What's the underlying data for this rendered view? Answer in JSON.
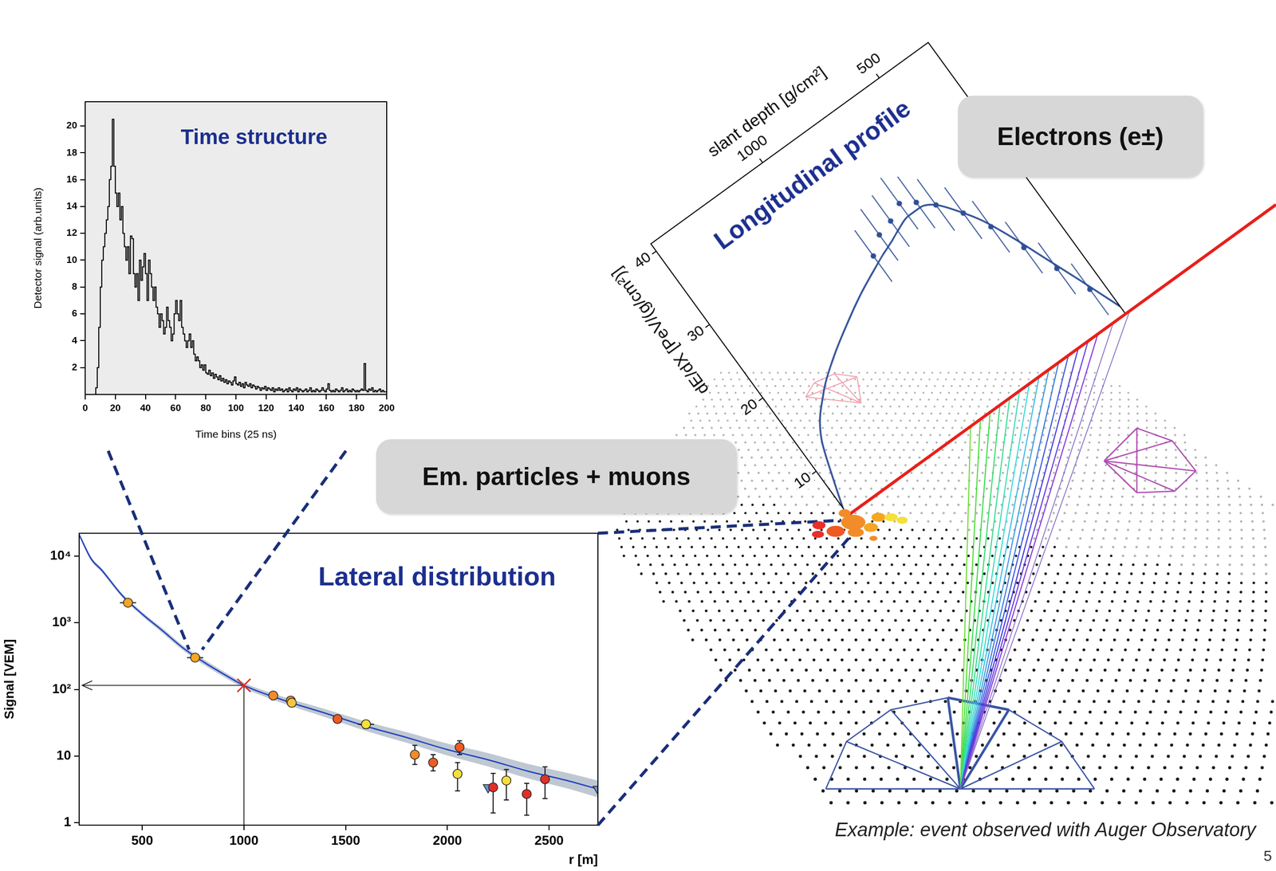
{
  "chart_data": [
    {
      "type": "histogram",
      "title": "Time structure",
      "x_label": "Time bins (25 ns)",
      "y_label": "Detector signal (arb.units)",
      "color": "#000000",
      "bins": [
        0,
        1,
        2,
        3,
        4,
        5,
        6,
        7,
        8,
        9,
        10,
        11,
        12,
        13,
        14,
        15,
        16,
        17,
        18,
        19,
        20,
        21,
        22,
        23,
        24,
        25,
        26,
        27,
        28,
        29,
        30,
        31,
        32,
        33,
        34,
        35,
        36,
        37,
        38,
        39,
        40,
        41,
        42,
        43,
        44,
        45,
        46,
        47,
        48,
        49,
        50,
        51,
        52,
        53,
        54,
        55,
        56,
        57,
        58,
        59,
        60,
        61,
        62,
        63,
        64,
        65,
        66,
        67,
        68,
        69,
        70,
        71,
        72,
        73,
        74,
        75,
        76,
        77,
        78,
        79,
        80,
        81,
        82,
        83,
        84,
        85,
        86,
        87,
        88,
        89,
        90,
        91,
        92,
        93,
        94,
        95,
        96,
        97,
        98,
        99,
        100,
        101,
        102,
        103,
        104,
        105,
        106,
        107,
        108,
        109,
        110,
        111,
        112,
        113,
        114,
        115,
        116,
        117,
        118,
        119,
        120,
        121,
        122,
        123,
        124,
        125,
        126,
        127,
        128,
        129,
        130,
        131,
        132,
        133,
        134,
        135,
        136,
        137,
        138,
        139,
        140,
        141,
        142,
        143,
        144,
        145,
        146,
        147,
        148,
        149,
        150,
        151,
        152,
        153,
        154,
        155,
        156,
        157,
        158,
        159,
        160,
        161,
        162,
        163,
        164,
        165,
        166,
        167,
        168,
        169,
        170,
        171,
        172,
        173,
        174,
        175,
        176,
        177,
        178,
        179,
        180,
        181,
        182,
        183,
        184,
        185,
        186,
        187,
        188,
        189,
        190,
        191,
        192,
        193,
        194,
        195,
        196,
        197,
        198,
        199,
        200
      ],
      "counts": [
        0,
        0,
        0,
        0,
        0,
        0,
        0,
        0,
        0.5,
        2,
        5,
        8,
        10,
        11,
        12,
        13,
        14,
        16,
        17,
        20.5,
        17,
        15,
        14,
        15,
        13,
        14,
        12,
        11,
        10,
        11,
        9,
        11.8,
        11.6,
        9,
        8,
        9,
        7,
        10,
        8.5,
        9.5,
        10.5,
        9,
        7,
        10,
        9,
        8,
        7,
        8,
        6.5,
        6,
        5,
        6,
        5.5,
        4.5,
        5,
        6.5,
        5.5,
        5,
        4,
        4.5,
        6,
        7,
        6,
        5.5,
        7,
        5,
        4.5,
        4,
        3.5,
        4,
        4.5,
        3.5,
        4,
        3,
        2.5,
        2.8,
        2.5,
        2,
        2.2,
        1.8,
        2.2,
        1.6,
        1.5,
        1.8,
        1.4,
        1.6,
        1.2,
        1.5,
        1.3,
        1.1,
        1.4,
        1,
        1.2,
        0.9,
        1.1,
        0.8,
        1,
        0.9,
        0.7,
        1,
        1.3,
        0.8,
        0.7,
        0.9,
        0.6,
        0.8,
        0.5,
        0.9,
        0.7,
        0.6,
        0.8,
        0.5,
        0.7,
        0.6,
        0.4,
        0.6,
        0.5,
        0.3,
        0.5,
        0.4,
        0.6,
        0.3,
        0.5,
        0.4,
        0.3,
        0.5,
        0.2,
        0.4,
        0.3,
        0.5,
        0.3,
        0.4,
        0.2,
        0.3,
        0.4,
        0.2,
        0.5,
        0.3,
        0.2,
        0.4,
        0.3,
        0.5,
        0.2,
        0.4,
        0.3,
        0.2,
        0.3,
        0.4,
        0.2,
        0.3,
        0.5,
        0.2,
        0.3,
        0.2,
        0.4,
        0.3,
        0.2,
        0.3,
        0.5,
        0.3,
        0.2,
        0.4,
        0.8,
        0.3,
        0.2,
        0.3,
        0.2,
        0.4,
        0.3,
        0.2,
        0.3,
        0.5,
        0.2,
        0.3,
        0.4,
        0.2,
        0.3,
        0.2,
        0.4,
        0.3,
        0.2,
        0.3,
        0.2,
        0.3,
        0.4,
        0.3,
        2.3,
        0.3,
        0.2,
        0.4,
        0.3,
        0.5,
        0.2,
        0.3,
        0.2,
        0.3,
        0.4,
        0.2,
        0.3,
        0.2
      ],
      "xlim": [
        0,
        200
      ],
      "ylim": [
        0,
        21.8
      ],
      "xticks": [
        0,
        20,
        40,
        60,
        80,
        100,
        120,
        140,
        160,
        180,
        200
      ],
      "yticks": [
        2,
        4,
        6,
        8,
        10,
        12,
        14,
        16,
        18,
        20
      ]
    },
    {
      "type": "scatter",
      "title": "Lateral distribution",
      "x_label": "r [m]",
      "y_label": "Signal [VEM]",
      "log": "y",
      "xlim": [
        190,
        2740
      ],
      "ylim": [
        0.92,
        22000
      ],
      "xticks": [
        500,
        1000,
        1500,
        2000,
        2500
      ],
      "yticks": [
        1,
        10,
        {
          "value": 100,
          "label": "10²"
        },
        {
          "value": 1000,
          "label": "10³"
        },
        {
          "value": 10000,
          "label": "10⁴"
        }
      ],
      "series": [
        {
          "type": "line",
          "color": "#1f3fbf",
          "x": [
            190,
            250,
            300,
            400,
            500,
            600,
            700,
            800,
            900,
            1000,
            1200,
            1400,
            1600,
            1800,
            2000,
            2200,
            2400,
            2600,
            2740
          ],
          "values": [
            21000,
            9000,
            6200,
            2600,
            1350,
            760,
            420,
            260,
            170,
            115,
            68,
            44,
            28,
            19,
            12.5,
            8.8,
            5.9,
            4.2,
            3.2
          ],
          "band_low": [
            19590,
            8396,
            5784,
            2425,
            1259,
            701,
            387,
            237,
            155,
            105,
            60.6,
            38.3,
            23.8,
            15.8,
            10.2,
            7.0,
            4.6,
            3.2,
            2.4
          ],
          "band_high": [
            22512,
            9648,
            6646,
            2787,
            1447,
            824,
            455,
            285,
            186,
            126,
            76.3,
            50.5,
            32.9,
            22.8,
            15.4,
            11.1,
            7.6,
            5.5,
            4.3
          ]
        },
        {
          "type": "scatter",
          "marker": "circle",
          "x": [
            430,
            760,
            1144,
            1230,
            1235,
            1460,
            1600,
            1840,
            1930,
            2060,
            2050,
            2225,
            2290,
            2390,
            2480
          ],
          "values": [
            2000,
            300,
            81,
            68,
            63,
            36,
            30,
            10.5,
            8,
            13.6,
            5.4,
            3.4,
            4.3,
            2.7,
            4.5
          ],
          "error_low": [
            1900,
            285,
            77,
            65,
            60,
            34,
            26,
            7.5,
            6,
            10.5,
            3,
            1.4,
            2.2,
            1.3,
            2.3
          ],
          "error_high": [
            2100,
            315,
            85,
            71,
            66,
            38,
            34,
            14.5,
            10.5,
            17,
            8,
            5.5,
            6.3,
            3.9,
            6.9
          ],
          "x_error": [
            40,
            40,
            0,
            0,
            0,
            0,
            40,
            0,
            0,
            0,
            0,
            0,
            0,
            0,
            0
          ],
          "colors": [
            "#f5a623",
            "#f5a623",
            "#f28c28",
            "#f28c28",
            "#f5c542",
            "#ee5a24",
            "#f5e03a",
            "#f28c28",
            "#ee5a24",
            "#ee5a24",
            "#f5e03a",
            "#e0302a",
            "#f5e03a",
            "#e0302a",
            "#e0302a"
          ]
        },
        {
          "type": "scatter",
          "marker": "triangle_down",
          "color": "#6f8fd8",
          "x": [
            2200,
            2740
          ],
          "values": [
            3.4,
            3.2
          ]
        }
      ],
      "reference_point": {
        "x": 1000,
        "y": 115
      }
    },
    {
      "type": "line",
      "title": "Longitudinal profile",
      "x_label": "slant depth [g/cm²]",
      "y_label": "dE/dX [PeV/(g/cm²)]",
      "xlim": [
        1480,
        290
      ],
      "ylim": [
        4,
        41
      ],
      "xticks": [
        500,
        1000
      ],
      "yticks": [
        10,
        20,
        30,
        40
      ],
      "series": [
        {
          "type": "line",
          "color": "#2f4f96",
          "x": [
            290,
            350,
            400,
            450,
            500,
            550,
            600,
            650,
            700,
            750,
            800,
            850,
            900,
            1000,
            1100,
            1200,
            1300,
            1400,
            1450,
            1480
          ],
          "values": [
            5,
            10,
            14,
            18,
            21.5,
            24,
            26,
            26.8,
            26.8,
            26.3,
            25.6,
            25,
            24.3,
            22.8,
            21,
            19,
            16.5,
            12.5,
            8,
            5
          ]
        },
        {
          "type": "scatter",
          "marker": "circle",
          "color": "#2f4f96",
          "x": [
            340,
            390,
            440,
            490,
            540,
            600,
            650,
            700,
            760,
            820,
            880
          ],
          "values": [
            8.5,
            12.5,
            16.5,
            20.5,
            23.5,
            26,
            27.5,
            28.5,
            27.5,
            27,
            25.5
          ],
          "errors": [
            3.5,
            3.5,
            3.5,
            3.5,
            3.5,
            3.5,
            3.5,
            3.5,
            3.5,
            3.5,
            3.5
          ]
        }
      ]
    }
  ],
  "annotations": {
    "electrons": "Electrons (e±)",
    "em_particles": "Em. particles + muons",
    "caption": "Example: event observed with Auger Observatory",
    "page_number": "5"
  }
}
